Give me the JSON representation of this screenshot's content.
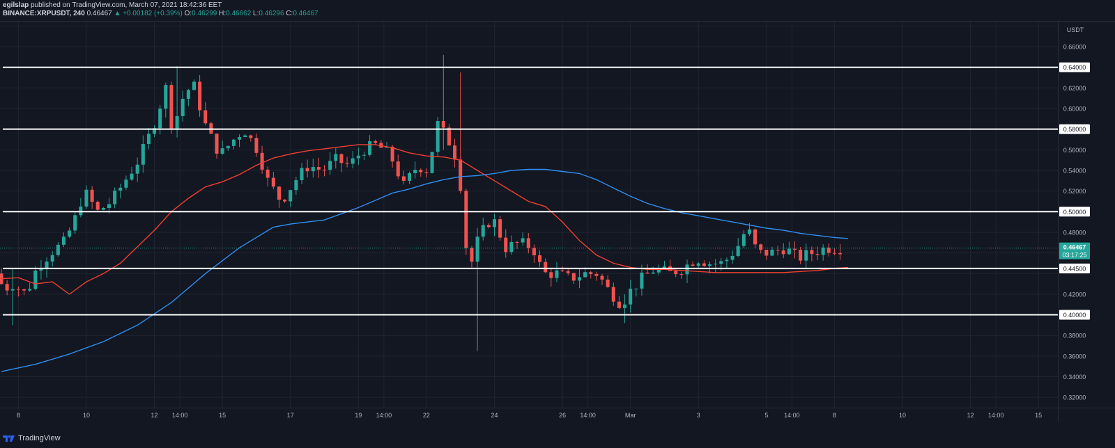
{
  "header": {
    "publisher": "egilslap",
    "published_text": "published on TradingView.com, March 07, 2021 18:42:36 EET",
    "symbol": "BINANCE:XRPUSDT, 240",
    "last": "0.46467",
    "change": "▲ +0.00182 (+0.39%)",
    "open_label": "O:",
    "open": "0.46299",
    "high_label": "H:",
    "high": "0.46662",
    "low_label": "L:",
    "low": "0.46296",
    "close_label": "C:",
    "close": "0.46467"
  },
  "footer": {
    "brand": "TradingView"
  },
  "colors": {
    "background": "#131722",
    "up": "#26a69a",
    "down": "#ef5350",
    "ma_fast": "#f23f30",
    "ma_slow": "#2f8ff0",
    "level_line": "#ffffff",
    "axis_text": "#b2b5be"
  },
  "chart_data": {
    "type": "candlestick",
    "currency_label": "USDT",
    "ylim": [
      0.31,
      0.685
    ],
    "y_ticks": [
      0.32,
      0.34,
      0.36,
      0.38,
      0.4,
      0.42,
      0.44,
      0.46,
      0.48,
      0.5,
      0.52,
      0.54,
      0.56,
      0.58,
      0.6,
      0.62,
      0.64,
      0.66,
      0.68
    ],
    "y_tick_labels": [
      "0.32000",
      "0.34000",
      "0.36000",
      "0.38000",
      "0.40000",
      "0.42000",
      "0.44000",
      "0.46000",
      "0.48000",
      "0.50000",
      "0.52000",
      "0.54000",
      "0.56000",
      "0.58000",
      "0.60000",
      "0.62000",
      "0.64000",
      "0.66000",
      ""
    ],
    "horizontal_levels": [
      {
        "value": 0.64,
        "label": "0.64000"
      },
      {
        "value": 0.58,
        "label": "0.58000"
      },
      {
        "value": 0.5,
        "label": "0.50000"
      },
      {
        "value": 0.445,
        "label": "0.44500"
      },
      {
        "value": 0.4,
        "label": "0.40000"
      }
    ],
    "last_price": {
      "value": 0.46467,
      "label": "0.46467",
      "countdown": "03:17:25"
    },
    "x_ticks": [
      {
        "t": 0.5,
        "label": "8"
      },
      {
        "t": 2.5,
        "label": "10"
      },
      {
        "t": 4.5,
        "label": "12"
      },
      {
        "t": 5.25,
        "label": "14:00"
      },
      {
        "t": 6.5,
        "label": "15"
      },
      {
        "t": 8.5,
        "label": "17"
      },
      {
        "t": 10.5,
        "label": "19"
      },
      {
        "t": 11.25,
        "label": "14:00"
      },
      {
        "t": 12.5,
        "label": "22"
      },
      {
        "t": 14.5,
        "label": "24"
      },
      {
        "t": 16.5,
        "label": "26"
      },
      {
        "t": 17.25,
        "label": "14:00"
      },
      {
        "t": 18.5,
        "label": "Mar"
      },
      {
        "t": 20.5,
        "label": "3"
      },
      {
        "t": 22.5,
        "label": "5"
      },
      {
        "t": 23.25,
        "label": "14:00"
      },
      {
        "t": 24.5,
        "label": "8"
      },
      {
        "t": 26.5,
        "label": "10"
      },
      {
        "t": 28.5,
        "label": "12"
      },
      {
        "t": 29.25,
        "label": "14:00"
      },
      {
        "t": 30.5,
        "label": "15"
      }
    ],
    "x_range": [
      0.0,
      32.0
    ],
    "candles_per_day": 6,
    "price_path": [
      [
        0.0,
        0.44
      ],
      [
        0.25,
        0.425
      ],
      [
        0.5,
        0.43
      ],
      [
        0.9,
        0.42
      ],
      [
        1.2,
        0.445
      ],
      [
        1.6,
        0.46
      ],
      [
        2.0,
        0.47
      ],
      [
        2.3,
        0.49
      ],
      [
        2.6,
        0.52
      ],
      [
        3.0,
        0.5
      ],
      [
        3.4,
        0.51
      ],
      [
        3.8,
        0.53
      ],
      [
        4.2,
        0.55
      ],
      [
        4.6,
        0.58
      ],
      [
        5.0,
        0.62
      ],
      [
        5.2,
        0.58
      ],
      [
        5.5,
        0.61
      ],
      [
        5.8,
        0.625
      ],
      [
        6.2,
        0.58
      ],
      [
        6.6,
        0.555
      ],
      [
        7.0,
        0.57
      ],
      [
        7.3,
        0.58
      ],
      [
        7.7,
        0.56
      ],
      [
        8.0,
        0.53
      ],
      [
        8.4,
        0.51
      ],
      [
        8.8,
        0.53
      ],
      [
        9.2,
        0.545
      ],
      [
        9.6,
        0.54
      ],
      [
        10.0,
        0.55
      ],
      [
        10.4,
        0.545
      ],
      [
        10.8,
        0.56
      ],
      [
        11.2,
        0.565
      ],
      [
        11.6,
        0.555
      ],
      [
        12.0,
        0.525
      ],
      [
        12.4,
        0.545
      ],
      [
        12.7,
        0.54
      ],
      [
        13.0,
        0.585
      ],
      [
        13.3,
        0.57
      ],
      [
        13.5,
        0.555
      ],
      [
        13.7,
        0.52
      ],
      [
        13.9,
        0.44
      ],
      [
        14.2,
        0.475
      ],
      [
        14.6,
        0.495
      ],
      [
        15.0,
        0.465
      ],
      [
        15.4,
        0.47
      ],
      [
        15.8,
        0.465
      ],
      [
        16.1,
        0.44
      ],
      [
        16.5,
        0.44
      ],
      [
        16.9,
        0.435
      ],
      [
        17.3,
        0.44
      ],
      [
        17.7,
        0.44
      ],
      [
        18.0,
        0.425
      ],
      [
        18.4,
        0.41
      ],
      [
        18.7,
        0.425
      ],
      [
        19.0,
        0.435
      ],
      [
        19.4,
        0.445
      ],
      [
        19.8,
        0.44
      ],
      [
        20.2,
        0.445
      ],
      [
        20.6,
        0.455
      ],
      [
        21.0,
        0.45
      ],
      [
        21.4,
        0.45
      ],
      [
        21.8,
        0.465
      ],
      [
        22.1,
        0.485
      ],
      [
        22.4,
        0.46
      ],
      [
        22.8,
        0.46
      ],
      [
        23.2,
        0.465
      ],
      [
        23.6,
        0.455
      ],
      [
        24.0,
        0.46
      ],
      [
        24.4,
        0.465
      ],
      [
        24.7,
        0.4647
      ]
    ],
    "series": [
      {
        "name": "",
        "color": "#f23f30",
        "points": [
          [
            0,
            0.435
          ],
          [
            0.5,
            0.436
          ],
          [
            1.0,
            0.43
          ],
          [
            1.5,
            0.432
          ],
          [
            2.0,
            0.42
          ],
          [
            2.5,
            0.432
          ],
          [
            3.0,
            0.44
          ],
          [
            3.5,
            0.45
          ],
          [
            4.0,
            0.466
          ],
          [
            4.5,
            0.482
          ],
          [
            5.0,
            0.5
          ],
          [
            5.5,
            0.513
          ],
          [
            6.0,
            0.524
          ],
          [
            6.5,
            0.529
          ],
          [
            7.0,
            0.536
          ],
          [
            7.5,
            0.545
          ],
          [
            8.0,
            0.552
          ],
          [
            8.5,
            0.556
          ],
          [
            9.0,
            0.559
          ],
          [
            9.5,
            0.561
          ],
          [
            10.0,
            0.563
          ],
          [
            10.5,
            0.565
          ],
          [
            11.0,
            0.565
          ],
          [
            11.5,
            0.562
          ],
          [
            12.0,
            0.557
          ],
          [
            12.5,
            0.554
          ],
          [
            13.0,
            0.553
          ],
          [
            13.5,
            0.55
          ],
          [
            14.0,
            0.54
          ],
          [
            14.5,
            0.53
          ],
          [
            15.0,
            0.52
          ],
          [
            15.5,
            0.51
          ],
          [
            16.0,
            0.505
          ],
          [
            16.5,
            0.49
          ],
          [
            17.0,
            0.472
          ],
          [
            17.5,
            0.458
          ],
          [
            18.0,
            0.45
          ],
          [
            18.5,
            0.446
          ],
          [
            19.0,
            0.444
          ],
          [
            19.5,
            0.444
          ],
          [
            20.0,
            0.443
          ],
          [
            20.5,
            0.442
          ],
          [
            21.0,
            0.441
          ],
          [
            21.5,
            0.441
          ],
          [
            22.0,
            0.441
          ],
          [
            22.5,
            0.441
          ],
          [
            23.0,
            0.441
          ],
          [
            23.5,
            0.442
          ],
          [
            24.0,
            0.443
          ],
          [
            24.5,
            0.445
          ],
          [
            24.9,
            0.446
          ]
        ]
      },
      {
        "name": "",
        "color": "#2f8ff0",
        "points": [
          [
            0,
            0.345
          ],
          [
            1.0,
            0.352
          ],
          [
            2.0,
            0.362
          ],
          [
            3.0,
            0.374
          ],
          [
            4.0,
            0.39
          ],
          [
            5.0,
            0.412
          ],
          [
            6.0,
            0.44
          ],
          [
            7.0,
            0.465
          ],
          [
            8.0,
            0.485
          ],
          [
            8.5,
            0.488
          ],
          [
            9.0,
            0.49
          ],
          [
            9.5,
            0.492
          ],
          [
            10.0,
            0.498
          ],
          [
            10.5,
            0.504
          ],
          [
            11.0,
            0.511
          ],
          [
            11.5,
            0.518
          ],
          [
            12.0,
            0.522
          ],
          [
            12.5,
            0.527
          ],
          [
            13.0,
            0.531
          ],
          [
            13.5,
            0.534
          ],
          [
            14.0,
            0.535
          ],
          [
            14.5,
            0.537
          ],
          [
            15.0,
            0.54
          ],
          [
            15.5,
            0.541
          ],
          [
            16.0,
            0.541
          ],
          [
            16.5,
            0.539
          ],
          [
            17.0,
            0.537
          ],
          [
            17.5,
            0.531
          ],
          [
            18.0,
            0.523
          ],
          [
            18.5,
            0.515
          ],
          [
            19.0,
            0.508
          ],
          [
            19.5,
            0.503
          ],
          [
            20.0,
            0.499
          ],
          [
            20.5,
            0.496
          ],
          [
            21.0,
            0.493
          ],
          [
            21.5,
            0.49
          ],
          [
            22.0,
            0.487
          ],
          [
            22.5,
            0.484
          ],
          [
            23.0,
            0.482
          ],
          [
            23.5,
            0.479
          ],
          [
            24.0,
            0.477
          ],
          [
            24.5,
            0.475
          ],
          [
            24.9,
            0.474
          ]
        ]
      }
    ],
    "candle_extremes": [
      {
        "t": 13.02,
        "high": 0.652,
        "low": 0.56
      },
      {
        "t": 13.55,
        "high": 0.635,
        "low": 0.54
      },
      {
        "t": 13.95,
        "high": 0.475,
        "low": 0.365
      },
      {
        "t": 5.2,
        "high": 0.641,
        "low": 0.58
      },
      {
        "t": 0.4,
        "high": 0.445,
        "low": 0.39
      },
      {
        "t": 18.4,
        "high": 0.42,
        "low": 0.392
      }
    ],
    "grid": true,
    "legend": "none"
  }
}
